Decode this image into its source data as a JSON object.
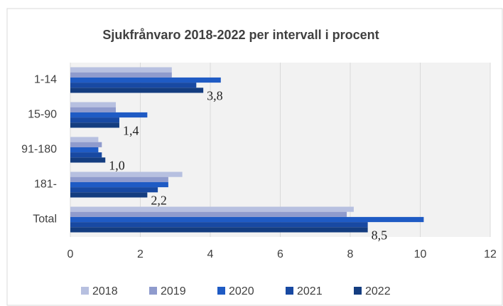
{
  "chart_data": {
    "type": "bar",
    "orientation": "horizontal",
    "title": "Sjukfrånvaro 2018-2022 per intervall i procent",
    "categories": [
      "1-14",
      "15-90",
      "91-180",
      "181-",
      "Total"
    ],
    "series": [
      {
        "name": "2018",
        "color": "#b7c0e0",
        "values": [
          2.9,
          1.3,
          0.8,
          3.2,
          8.1
        ]
      },
      {
        "name": "2019",
        "color": "#8f9bcd",
        "values": [
          2.9,
          1.3,
          0.9,
          2.8,
          7.9
        ]
      },
      {
        "name": "2020",
        "color": "#1f5bc4",
        "values": [
          4.3,
          2.2,
          0.8,
          2.8,
          10.1
        ]
      },
      {
        "name": "2021",
        "color": "#1849a2",
        "values": [
          3.6,
          1.4,
          0.9,
          2.5,
          8.5
        ]
      },
      {
        "name": "2022",
        "color": "#143d80",
        "values": [
          3.8,
          1.4,
          1.0,
          2.2,
          8.5
        ],
        "value_labels": [
          "3,8",
          "1,4",
          "1,0",
          "2,2",
          "8,5"
        ]
      }
    ],
    "xlim": [
      0,
      12
    ],
    "xticks": [
      0,
      2,
      4,
      6,
      8,
      10,
      12
    ],
    "grid": true,
    "legend": "bottom"
  }
}
